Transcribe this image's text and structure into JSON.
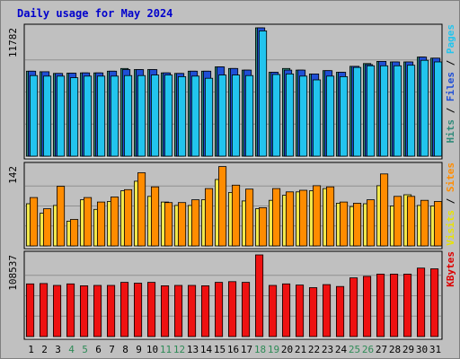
{
  "chart_data": {
    "type": "bar",
    "title": "Daily usage for May 2024",
    "categories": [
      "1",
      "2",
      "3",
      "4",
      "5",
      "6",
      "7",
      "8",
      "9",
      "10",
      "11",
      "12",
      "13",
      "14",
      "15",
      "16",
      "17",
      "18",
      "19",
      "20",
      "21",
      "22",
      "23",
      "24",
      "25",
      "26",
      "27",
      "28",
      "29",
      "30",
      "31"
    ],
    "weekend_days": [
      4,
      5,
      11,
      12,
      18,
      19,
      25,
      26
    ],
    "panels": [
      {
        "id": "hits",
        "ylim": [
          0,
          11782
        ],
        "tick_label": "11782",
        "legend": [
          {
            "text": "Hits",
            "color": "#2e8b7a"
          },
          {
            "text": " / ",
            "color": "#000000"
          },
          {
            "text": "Files",
            "color": "#1f4fd6"
          },
          {
            "text": " / ",
            "color": "#000000"
          },
          {
            "text": "Pages",
            "color": "#22c4ee"
          }
        ],
        "series": [
          {
            "name": "Hits",
            "color": "#2e8b7a",
            "values": [
              7800,
              7750,
              7600,
              7620,
              7650,
              7650,
              7800,
              8050,
              7950,
              7950,
              7650,
              7600,
              7800,
              7800,
              8200,
              8050,
              7900,
              11782,
              7700,
              8050,
              7900,
              7550,
              7850,
              7700,
              8250,
              8500,
              8700,
              8650,
              8650,
              9100,
              9000
            ]
          },
          {
            "name": "Files",
            "color": "#1f4fd6",
            "values": [
              7800,
              7750,
              7600,
              7620,
              7650,
              7650,
              7800,
              7950,
              7950,
              7950,
              7650,
              7600,
              7800,
              7800,
              8200,
              8050,
              7900,
              11782,
              7700,
              7900,
              7900,
              7550,
              7850,
              7700,
              8250,
              8400,
              8700,
              8650,
              8650,
              9100,
              9000
            ]
          },
          {
            "name": "Pages",
            "color": "#22c4ee",
            "values": [
              7400,
              7350,
              7350,
              7200,
              7350,
              7350,
              7350,
              7400,
              7400,
              7450,
              7450,
              7300,
              7350,
              7150,
              7450,
              7450,
              7400,
              11500,
              7500,
              7550,
              7350,
              7000,
              7350,
              7300,
              8150,
              8300,
              8300,
              8300,
              8350,
              8800,
              8650
            ]
          }
        ]
      },
      {
        "id": "visits",
        "ylim": [
          0,
          142
        ],
        "tick_label": "142",
        "legend": [
          {
            "text": "Visits",
            "color": "#e8e300"
          },
          {
            "text": " / ",
            "color": "#000000"
          },
          {
            "text": "Sites",
            "color": "#ff8c00"
          }
        ],
        "series": [
          {
            "name": "Visits",
            "color": "#f2e84b",
            "values": [
              75,
              58,
              72,
              44,
              82,
              65,
              79,
              98,
              115,
              88,
              78,
              72,
              72,
              82,
              118,
              95,
              80,
              66,
              81,
              90,
              96,
              98,
              102,
              76,
              70,
              75,
              107,
              71,
              91,
              72,
              71
            ]
          },
          {
            "name": "Sites",
            "color": "#ff8c00",
            "values": [
              86,
              66,
              106,
              47,
              86,
              78,
              87,
              100,
              130,
              105,
              77,
              77,
              82,
              102,
              141,
              108,
              101,
              68,
              102,
              96,
              99,
              107,
              105,
              78,
              76,
              82,
              128,
              88,
              88,
              81,
              79
            ]
          }
        ]
      },
      {
        "id": "kbytes",
        "ylim": [
          0,
          108537
        ],
        "tick_label": "108537",
        "legend": [
          {
            "text": "KBytes",
            "color": "#dd0000"
          }
        ],
        "series": [
          {
            "name": "KBytes",
            "color": "#ee1111",
            "values": [
              70000,
              70500,
              68000,
              70000,
              67500,
              68000,
              68000,
              72000,
              71000,
              72000,
              67500,
              68000,
              68000,
              67500,
              72000,
              73000,
              72000,
              108537,
              68000,
              70000,
              68500,
              65000,
              69000,
              66500,
              78000,
              80000,
              83000,
              83000,
              83000,
              91000,
              90000
            ]
          }
        ]
      }
    ]
  }
}
